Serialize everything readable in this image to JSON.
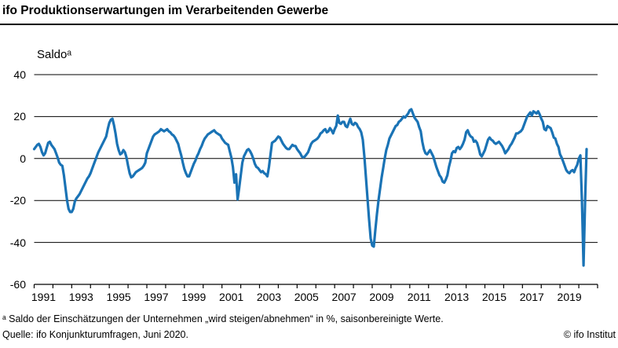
{
  "header": {
    "title": "ifo Produktionserwartungen im Verarbeitenden Gewerbe"
  },
  "footer": {
    "footnote": "ᵃ Saldo der Einschätzungen der Unternehmen „wird steigen/abnehmen“ in %, saisonbereinigte Werte.",
    "source": "Quelle: ifo Konjunkturumfragen, Juni 2020.",
    "copyright": "© ifo Institut"
  },
  "chart_data": {
    "type": "line",
    "title": "ifo Produktionserwartungen im Verarbeitenden Gewerbe",
    "ylabel": "Saldoᵃ",
    "ylim": [
      -60,
      40
    ],
    "yticks": [
      40,
      20,
      0,
      -20,
      -40,
      -60
    ],
    "grid": "horizontal",
    "x_axis": {
      "start_year": 1991,
      "end_year": 2021,
      "tick_interval_years": 1,
      "labeled_years": [
        1991,
        1993,
        1995,
        1997,
        1999,
        2001,
        2003,
        2005,
        2007,
        2009,
        2011,
        2013,
        2015,
        2017,
        2019
      ]
    },
    "frequency": "monthly",
    "first_point": "1991-01",
    "last_point": "2020-06",
    "line_color": "#1a73b5",
    "series": [
      {
        "name": "Produktionserwartungen Saldo",
        "values": [
          4.5,
          5.5,
          6.5,
          7.0,
          5.5,
          3.0,
          1.5,
          2.5,
          5.0,
          7.5,
          8.0,
          6.5,
          5.5,
          4.5,
          2.5,
          0.5,
          -2.0,
          -3.0,
          -3.5,
          -8.0,
          -14.0,
          -20.0,
          -24.0,
          -25.5,
          -25.5,
          -24.0,
          -20.5,
          -19.0,
          -18.0,
          -17.0,
          -15.5,
          -14.0,
          -12.5,
          -11.0,
          -9.5,
          -8.5,
          -7.0,
          -5.0,
          -3.0,
          -1.0,
          1.0,
          3.0,
          4.5,
          6.0,
          7.5,
          9.0,
          10.5,
          14.0,
          17.0,
          18.5,
          19.0,
          16.0,
          12.0,
          7.0,
          4.0,
          2.0,
          2.5,
          4.0,
          3.0,
          0.5,
          -3.5,
          -7.0,
          -9.0,
          -8.5,
          -7.5,
          -6.5,
          -6.0,
          -5.5,
          -5.0,
          -4.5,
          -3.5,
          -2.0,
          2.5,
          4.5,
          6.5,
          8.5,
          10.5,
          11.5,
          12.0,
          12.5,
          13.0,
          14.0,
          13.5,
          13.0,
          13.5,
          14.0,
          13.0,
          12.5,
          11.5,
          11.0,
          10.0,
          8.5,
          7.0,
          4.0,
          1.5,
          -2.0,
          -5.0,
          -7.0,
          -8.5,
          -8.5,
          -6.5,
          -4.5,
          -2.5,
          -1.0,
          1.0,
          2.5,
          4.5,
          6.0,
          8.0,
          9.5,
          10.5,
          11.5,
          12.0,
          12.5,
          13.0,
          13.5,
          12.5,
          12.0,
          11.5,
          11.0,
          9.5,
          8.5,
          7.5,
          7.0,
          6.5,
          3.5,
          0.5,
          -4.0,
          -11.5,
          -7.5,
          -19.5,
          -14.0,
          -8.0,
          -2.0,
          1.0,
          2.5,
          4.0,
          4.5,
          3.5,
          2.0,
          0.0,
          -2.5,
          -4.0,
          -4.5,
          -5.5,
          -6.5,
          -6.0,
          -7.0,
          -7.5,
          -8.5,
          -4.0,
          2.0,
          7.5,
          8.0,
          8.5,
          9.5,
          10.5,
          10.0,
          8.5,
          7.0,
          6.0,
          5.0,
          4.5,
          4.5,
          5.5,
          6.5,
          6.0,
          6.0,
          4.5,
          3.5,
          2.5,
          1.0,
          0.5,
          1.0,
          2.0,
          3.0,
          5.0,
          7.0,
          8.0,
          8.5,
          9.0,
          9.5,
          10.5,
          12.0,
          12.5,
          13.5,
          14.0,
          12.5,
          13.0,
          14.5,
          13.5,
          12.0,
          14.0,
          15.5,
          20.5,
          17.0,
          16.5,
          17.5,
          17.5,
          15.5,
          15.0,
          17.0,
          19.0,
          16.5,
          16.0,
          17.0,
          16.5,
          15.0,
          14.0,
          12.5,
          9.0,
          1.0,
          -9.0,
          -19.0,
          -29.0,
          -38.0,
          -41.5,
          -42.0,
          -34.0,
          -26.5,
          -20.0,
          -14.5,
          -9.0,
          -4.5,
          0.0,
          4.0,
          6.5,
          9.5,
          11.0,
          12.5,
          14.0,
          15.5,
          16.0,
          17.5,
          18.0,
          19.0,
          20.0,
          19.5,
          20.5,
          21.5,
          23.0,
          23.5,
          21.5,
          19.5,
          18.5,
          17.5,
          15.0,
          13.0,
          8.0,
          4.5,
          2.5,
          2.0,
          3.0,
          4.0,
          2.5,
          1.0,
          -1.5,
          -4.0,
          -6.0,
          -8.0,
          -9.0,
          -11.0,
          -11.5,
          -10.0,
          -8.0,
          -4.0,
          -1.0,
          2.5,
          3.5,
          3.0,
          5.0,
          5.5,
          4.5,
          5.5,
          7.0,
          9.0,
          12.5,
          13.5,
          11.5,
          10.5,
          10.0,
          8.0,
          8.5,
          7.5,
          5.0,
          2.0,
          1.0,
          2.5,
          4.0,
          6.5,
          9.0,
          10.0,
          9.0,
          8.5,
          7.5,
          7.0,
          7.5,
          8.0,
          7.0,
          6.0,
          4.5,
          2.5,
          3.5,
          4.5,
          6.0,
          7.0,
          8.5,
          10.0,
          12.0,
          12.0,
          12.5,
          13.0,
          14.0,
          16.0,
          18.0,
          20.0,
          21.0,
          22.0,
          20.5,
          22.5,
          22.0,
          21.5,
          22.5,
          21.0,
          19.0,
          17.5,
          14.0,
          13.5,
          15.5,
          15.0,
          14.5,
          12.5,
          10.0,
          9.5,
          7.0,
          5.5,
          2.0,
          0.5,
          -1.5,
          -3.5,
          -5.5,
          -6.5,
          -7.0,
          -6.0,
          -5.5,
          -6.5,
          -4.5,
          -3.0,
          0.0,
          1.5,
          -20.5,
          -51.0,
          -20.5,
          4.5
        ]
      }
    ]
  }
}
